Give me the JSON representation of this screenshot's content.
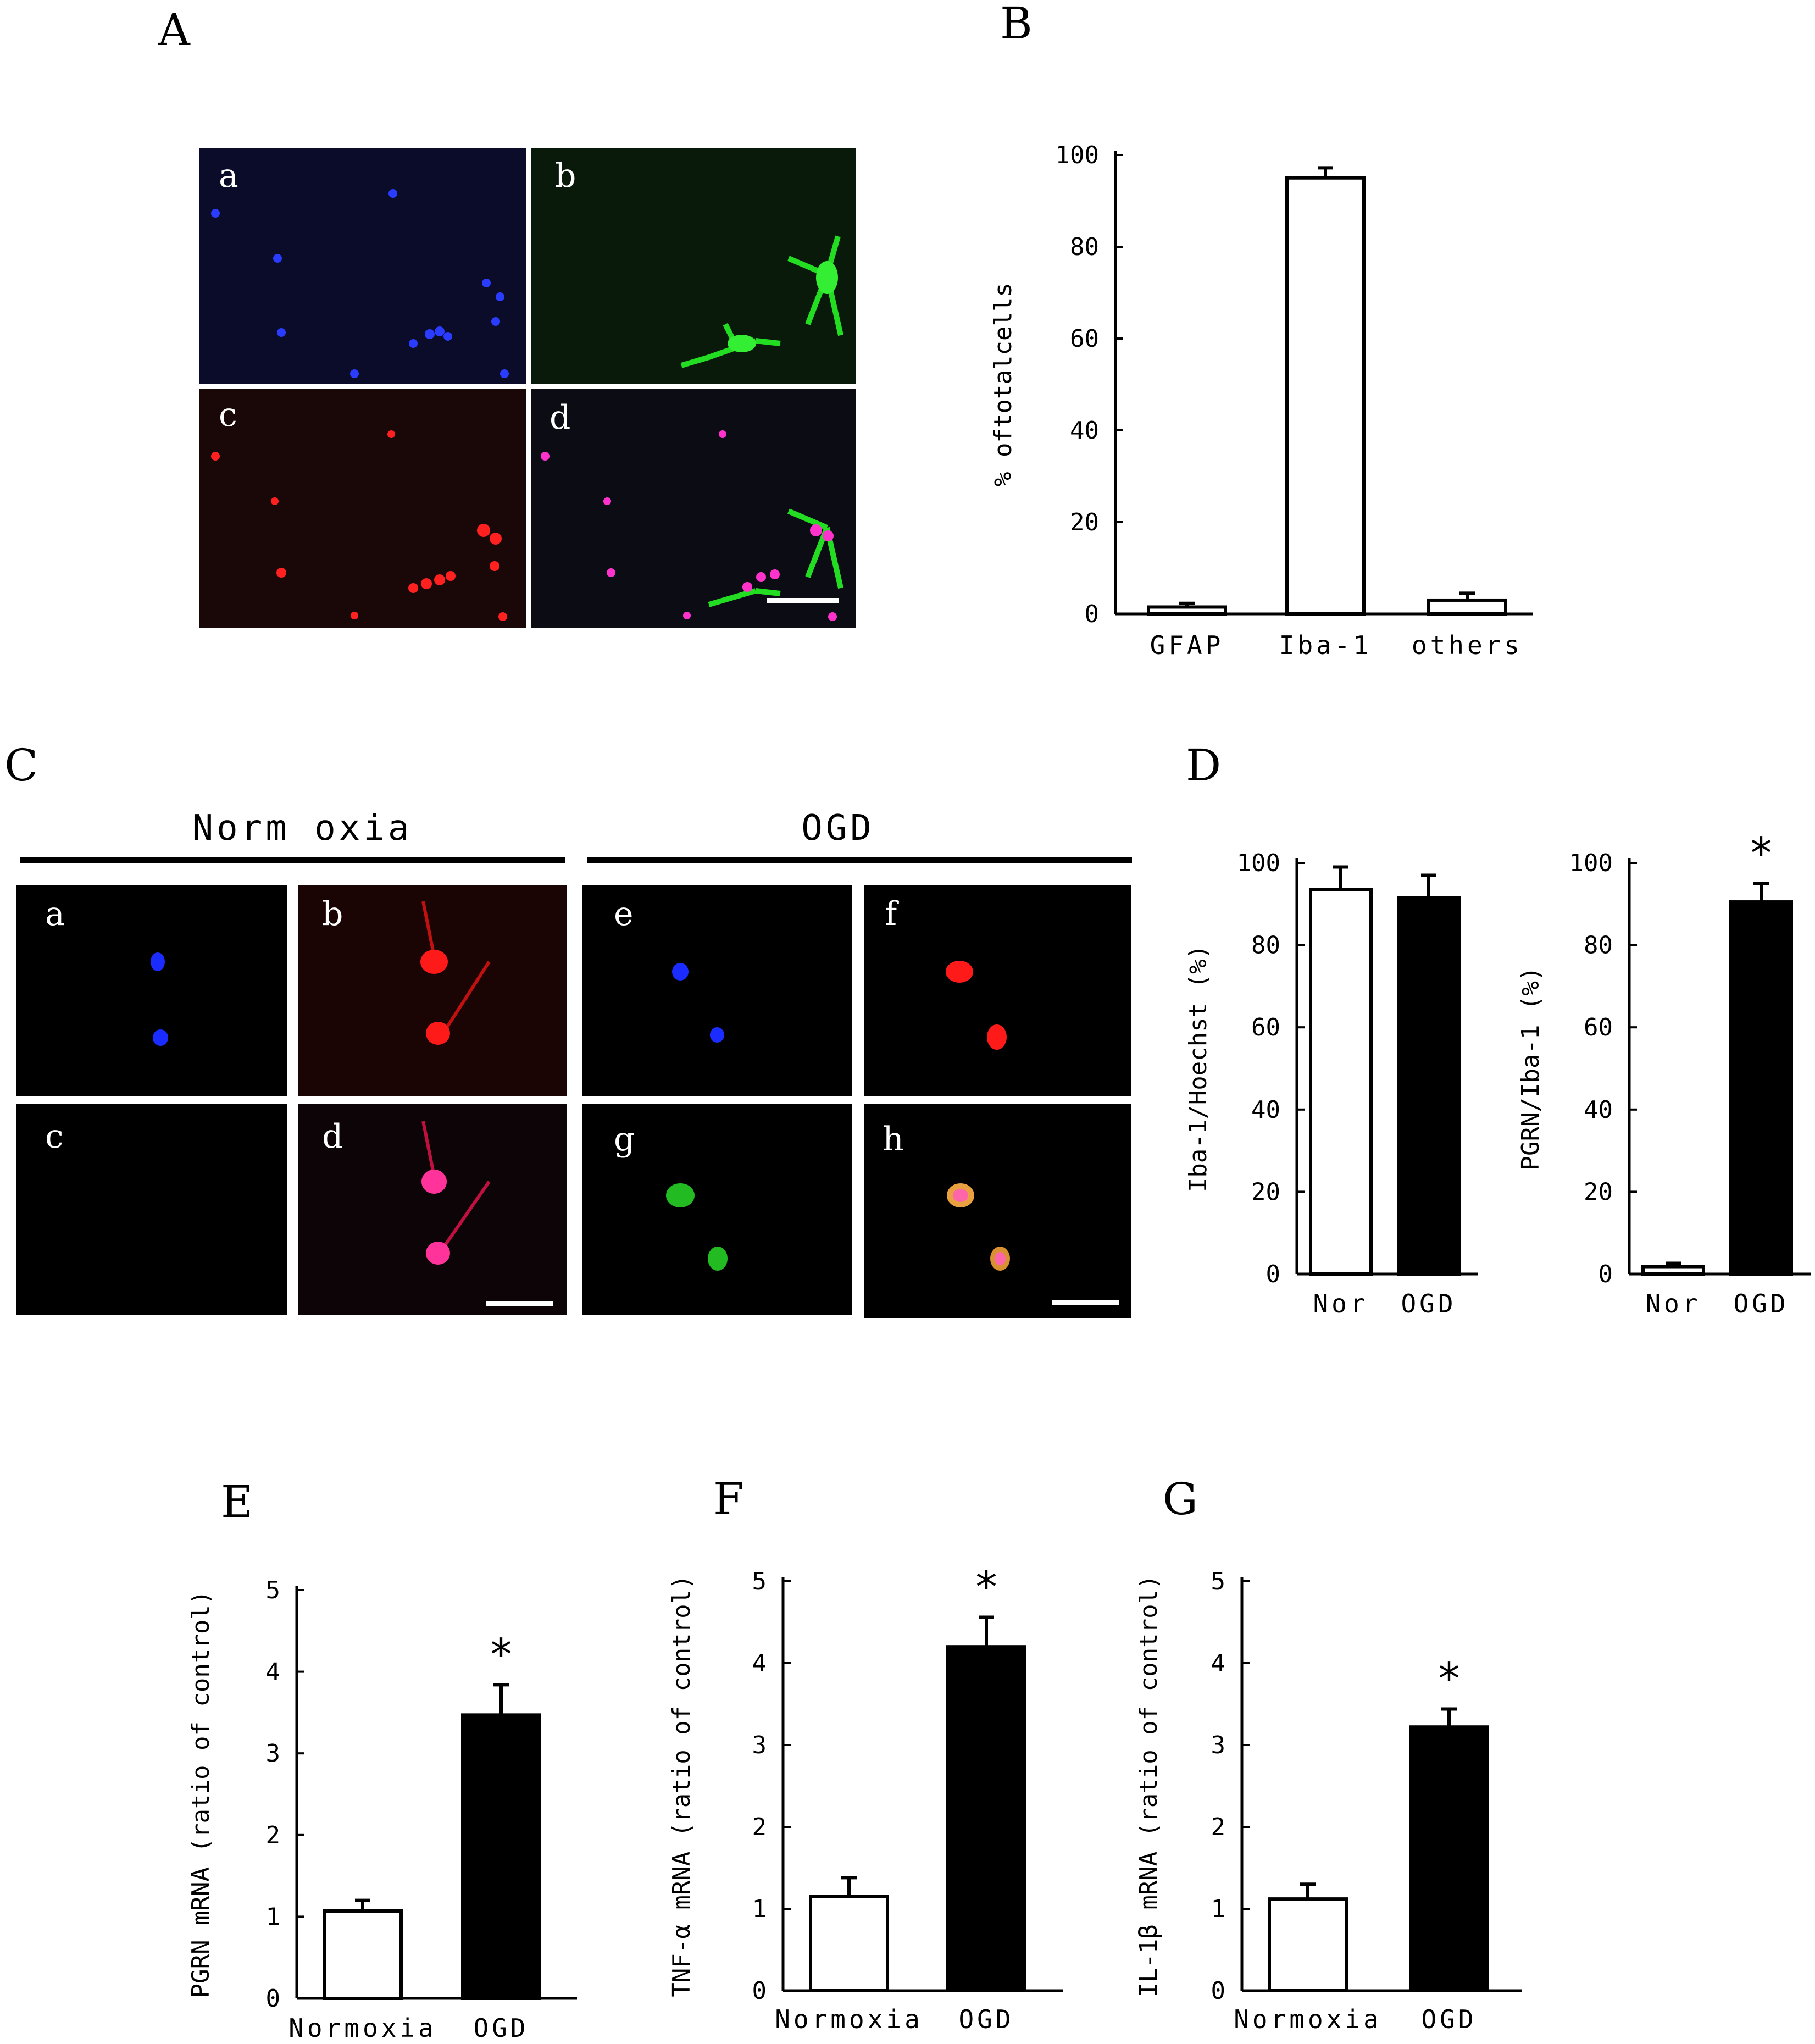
{
  "panel_labels": {
    "A": "A",
    "B": "B",
    "C": "C",
    "D": "D",
    "E": "E",
    "F": "F",
    "G": "G"
  },
  "panel_A": {
    "subpanels": [
      "a",
      "b",
      "c",
      "d"
    ],
    "stain_colors": {
      "a": "#1a2cff",
      "b": "#22dd22",
      "c": "#ff1a1a",
      "d": "#ff33cc"
    }
  },
  "panel_C": {
    "group_labels": [
      "Norm oxia",
      "OGD"
    ],
    "subpanels": [
      "a",
      "b",
      "c",
      "d",
      "e",
      "f",
      "g",
      "h"
    ]
  },
  "chart_data": [
    {
      "id": "B",
      "type": "bar",
      "categories": [
        "GFAP",
        "Iba-1",
        "others"
      ],
      "values": [
        1.5,
        95,
        3
      ],
      "errors": [
        0.8,
        2.2,
        1.5
      ],
      "fills": [
        "#ffffff",
        "#ffffff",
        "#ffffff"
      ],
      "ylabel": "% oftotalcells",
      "ylim": [
        0,
        100
      ],
      "yticks": [
        0,
        20,
        40,
        60,
        80,
        100
      ],
      "significance": [
        "",
        "",
        ""
      ]
    },
    {
      "id": "D1",
      "type": "bar",
      "categories": [
        "Nor",
        "OGD"
      ],
      "values": [
        93.5,
        91.5
      ],
      "errors": [
        5.5,
        5.5
      ],
      "fills": [
        "#ffffff",
        "#000000"
      ],
      "ylabel": "Iba-1/Hoechst (%)",
      "ylim": [
        0,
        100
      ],
      "yticks": [
        0,
        20,
        40,
        60,
        80,
        100
      ],
      "significance": [
        "",
        ""
      ]
    },
    {
      "id": "D2",
      "type": "bar",
      "categories": [
        "Nor",
        "OGD"
      ],
      "values": [
        1.8,
        90.5
      ],
      "errors": [
        0.8,
        4.5
      ],
      "fills": [
        "#ffffff",
        "#000000"
      ],
      "ylabel": "PGRN/Iba-1 (%)",
      "ylim": [
        0,
        100
      ],
      "yticks": [
        0,
        20,
        40,
        60,
        80,
        100
      ],
      "significance": [
        "",
        "*"
      ]
    },
    {
      "id": "E",
      "type": "bar",
      "categories": [
        "Normoxia",
        "OGD"
      ],
      "values": [
        1.07,
        3.47
      ],
      "errors": [
        0.13,
        0.37
      ],
      "fills": [
        "#ffffff",
        "#000000"
      ],
      "ylabel": "PGRN mRNA (ratio of control)",
      "ylim": [
        0,
        5
      ],
      "yticks": [
        0,
        1,
        2,
        3,
        4,
        5
      ],
      "significance": [
        "",
        "*"
      ]
    },
    {
      "id": "F",
      "type": "bar",
      "categories": [
        "Normoxia",
        "OGD"
      ],
      "values": [
        1.15,
        4.2
      ],
      "errors": [
        0.23,
        0.36
      ],
      "fills": [
        "#ffffff",
        "#000000"
      ],
      "ylabel": "TNF-α mRNA (ratio of control)",
      "ylim": [
        0,
        5
      ],
      "yticks": [
        0,
        1,
        2,
        3,
        4,
        5
      ],
      "significance": [
        "",
        "*"
      ]
    },
    {
      "id": "G",
      "type": "bar",
      "categories": [
        "Normoxia",
        "OGD"
      ],
      "values": [
        1.12,
        3.22
      ],
      "errors": [
        0.18,
        0.22
      ],
      "fills": [
        "#ffffff",
        "#000000"
      ],
      "ylabel": "IL-1β mRNA (ratio of control)",
      "ylim": [
        0,
        5
      ],
      "yticks": [
        0,
        1,
        2,
        3,
        4,
        5
      ],
      "significance": [
        "",
        "*"
      ]
    }
  ]
}
